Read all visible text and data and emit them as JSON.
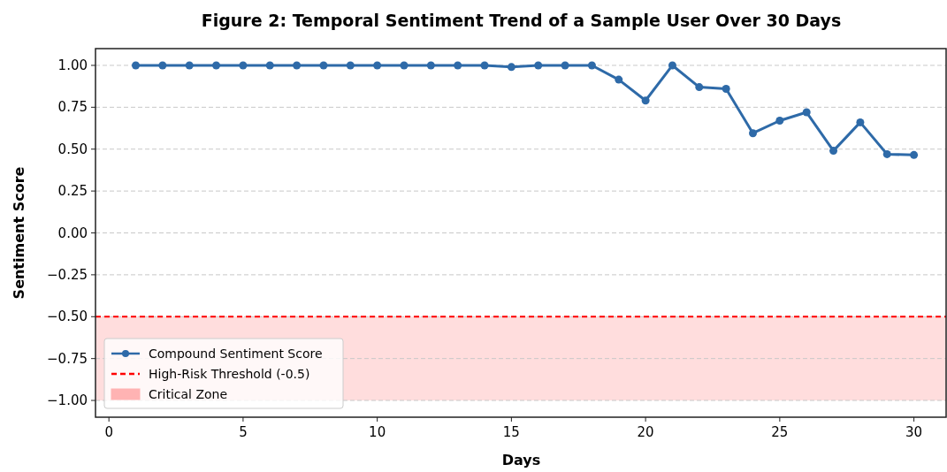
{
  "chart_data": {
    "type": "line",
    "title": "Figure 2: Temporal Sentiment Trend of a Sample User Over 30 Days",
    "xlabel": "Days",
    "ylabel": "Sentiment Score",
    "x": [
      1,
      2,
      3,
      4,
      5,
      6,
      7,
      8,
      9,
      10,
      11,
      12,
      13,
      14,
      15,
      16,
      17,
      18,
      19,
      20,
      21,
      22,
      23,
      24,
      25,
      26,
      27,
      28,
      29,
      30
    ],
    "series": [
      {
        "name": "Compound Sentiment Score",
        "color": "#2e6aa8",
        "values": [
          1,
          1,
          1,
          1,
          1,
          1,
          1,
          1,
          1,
          1,
          1,
          1,
          1,
          1,
          0.99,
          1,
          1,
          1,
          0.915,
          0.79,
          1,
          0.87,
          0.86,
          0.595,
          0.67,
          0.72,
          0.49,
          0.66,
          0.47,
          0.465
        ]
      }
    ],
    "xlim": [
      -0.5,
      31.2
    ],
    "xticks": [
      0,
      5,
      10,
      15,
      20,
      25,
      30
    ],
    "ylim": [
      -1.1,
      1.1
    ],
    "yticks": [
      {
        "value": -1,
        "label": "−1.00"
      },
      {
        "value": -0.75,
        "label": "−0.75"
      },
      {
        "value": -0.5,
        "label": "−0.50"
      },
      {
        "value": -0.25,
        "label": "−0.25"
      },
      {
        "value": 0,
        "label": "0.00"
      },
      {
        "value": 0.25,
        "label": "0.25"
      },
      {
        "value": 0.5,
        "label": "0.50"
      },
      {
        "value": 0.75,
        "label": "0.75"
      },
      {
        "value": 1,
        "label": "1.00"
      }
    ],
    "ref_lines": [
      {
        "axis": "y",
        "value": -0.5,
        "label": "High-Risk Threshold (-0.5)",
        "color": "#ff0000",
        "line_style": "dashed"
      }
    ],
    "bands": [
      {
        "axis": "y",
        "from": -1,
        "to": -0.5,
        "label": "Critical Zone",
        "color": "#ffb3b3"
      }
    ],
    "grid": "y",
    "legend": "bottom left",
    "marker": "circle",
    "line_style": "solid"
  }
}
